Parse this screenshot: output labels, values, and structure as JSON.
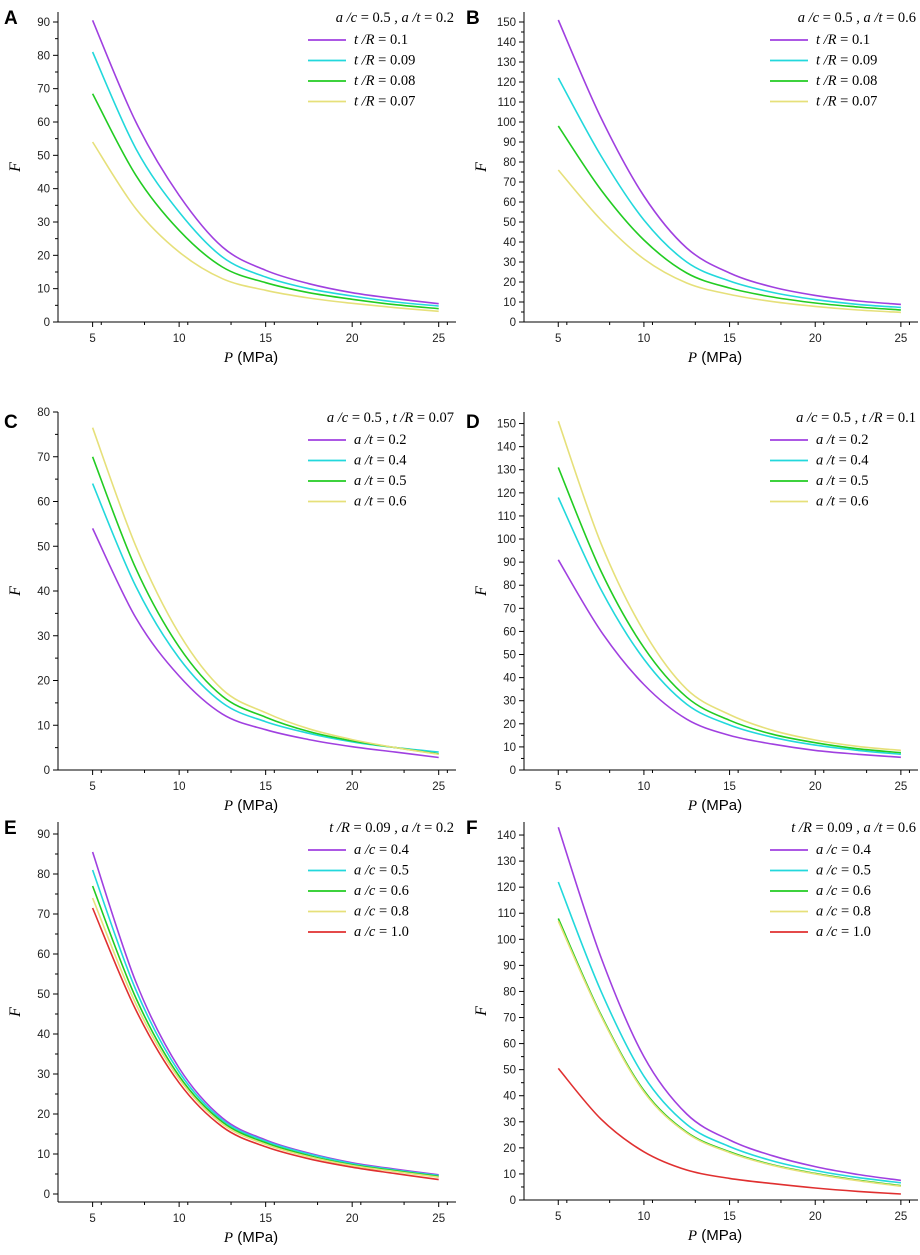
{
  "chart_data": [
    {
      "panel": "A",
      "type": "line",
      "title": "a /c = 0.5 , a /t = 0.2",
      "xlabel": "P (MPa)",
      "ylabel": "F",
      "x": [
        5,
        7.5,
        10,
        12.5,
        15,
        17.5,
        20,
        22.5,
        25
      ],
      "xlim": [
        3,
        26
      ],
      "ylim": [
        0,
        93
      ],
      "xticks": [
        5,
        10,
        15,
        20,
        25
      ],
      "yticks": [
        0,
        10,
        20,
        30,
        40,
        50,
        60,
        70,
        80,
        90
      ],
      "legend_position": "top-right",
      "series": [
        {
          "name": "t /R = 0.1",
          "prefix": "t /R",
          "value": "= 0.1",
          "color": "#a040e0",
          "values": [
            90.5,
            60,
            38,
            22.5,
            15.5,
            11.5,
            8.8,
            7.0,
            5.5
          ]
        },
        {
          "name": "t /R = 0.09",
          "prefix": "t /R",
          "value": "= 0.09",
          "color": "#22d8dc",
          "values": [
            81,
            52,
            33,
            19.5,
            13.5,
            10.0,
            7.8,
            6.0,
            4.8
          ]
        },
        {
          "name": "t /R = 0.08",
          "prefix": "t /R",
          "value": "= 0.08",
          "color": "#22cc22",
          "values": [
            68.5,
            44,
            27.5,
            16.5,
            11.8,
            8.8,
            6.8,
            5.2,
            4.0
          ]
        },
        {
          "name": "t /R = 0.07",
          "prefix": "t /R",
          "value": "= 0.07",
          "color": "#e6e07a",
          "values": [
            54,
            34,
            21,
            13,
            9.5,
            7.2,
            5.6,
            4.3,
            3.2
          ]
        }
      ]
    },
    {
      "panel": "B",
      "type": "line",
      "title": "a /c = 0.5 , a /t = 0.6",
      "xlabel": "P (MPa)",
      "ylabel": "F",
      "x": [
        5,
        7.5,
        10,
        12.5,
        15,
        17.5,
        20,
        22.5,
        25
      ],
      "xlim": [
        3,
        26
      ],
      "ylim": [
        0,
        155
      ],
      "xticks": [
        5,
        10,
        15,
        20,
        25
      ],
      "yticks": [
        0,
        10,
        20,
        30,
        40,
        50,
        60,
        70,
        80,
        90,
        100,
        110,
        120,
        130,
        140,
        150
      ],
      "legend_position": "top-right",
      "series": [
        {
          "name": "t /R = 0.1",
          "prefix": "t /R",
          "value": "= 0.1",
          "color": "#a040e0",
          "values": [
            151,
            102,
            63,
            37,
            24.5,
            17.5,
            13.3,
            10.5,
            8.8
          ]
        },
        {
          "name": "t /R = 0.09",
          "prefix": "t /R",
          "value": "= 0.09",
          "color": "#22d8dc",
          "values": [
            122,
            83,
            51,
            30,
            20.5,
            14.8,
            11.2,
            8.8,
            7.3
          ]
        },
        {
          "name": "t /R = 0.08",
          "prefix": "t /R",
          "value": "= 0.08",
          "color": "#22cc22",
          "values": [
            98,
            66,
            41,
            24.5,
            17,
            12.5,
            9.5,
            7.5,
            6.0
          ]
        },
        {
          "name": "t /R = 0.07",
          "prefix": "t /R",
          "value": "= 0.07",
          "color": "#e6e07a",
          "values": [
            76,
            51,
            31.5,
            19.5,
            13.8,
            10.2,
            7.8,
            6.0,
            4.8
          ]
        }
      ]
    },
    {
      "panel": "C",
      "type": "line",
      "title": "a /c = 0.5 , t /R = 0.07",
      "xlabel": "P (MPa)",
      "ylabel": "F",
      "x": [
        5,
        7.5,
        10,
        12.5,
        15,
        17.5,
        20,
        22.5,
        25
      ],
      "xlim": [
        3,
        26
      ],
      "ylim": [
        0,
        80
      ],
      "xticks": [
        5,
        10,
        15,
        20,
        25
      ],
      "yticks": [
        0,
        10,
        20,
        30,
        40,
        50,
        60,
        70,
        80
      ],
      "legend_position": "top-right",
      "series": [
        {
          "name": "a /t = 0.2",
          "prefix": "a /t",
          "value": "= 0.2",
          "color": "#a040e0",
          "values": [
            54,
            34,
            21,
            12.5,
            9.0,
            6.8,
            5.2,
            4.0,
            2.8
          ]
        },
        {
          "name": "a /t = 0.4",
          "prefix": "a /t",
          "value": "= 0.4",
          "color": "#22d8dc",
          "values": [
            64,
            41,
            25,
            15,
            10.8,
            8.2,
            6.3,
            5.0,
            4.0
          ]
        },
        {
          "name": "a /t = 0.5",
          "prefix": "a /t",
          "value": "= 0.5",
          "color": "#22cc22",
          "values": [
            70,
            45,
            27.5,
            16.5,
            11.8,
            8.6,
            6.5,
            5.0,
            3.6
          ]
        },
        {
          "name": "a /t = 0.6",
          "prefix": "a /t",
          "value": "= 0.6",
          "color": "#e6e07a",
          "values": [
            76.5,
            50,
            30.5,
            18,
            12.8,
            9.2,
            6.8,
            5.0,
            3.5
          ]
        }
      ]
    },
    {
      "panel": "D",
      "type": "line",
      "title": "a /c = 0.5 , t /R = 0.1",
      "xlabel": "P (MPa)",
      "ylabel": "F",
      "x": [
        5,
        7.5,
        10,
        12.5,
        15,
        17.5,
        20,
        22.5,
        25
      ],
      "xlim": [
        3,
        26
      ],
      "ylim": [
        0,
        155
      ],
      "xticks": [
        5,
        10,
        15,
        20,
        25
      ],
      "yticks": [
        0,
        10,
        20,
        30,
        40,
        50,
        60,
        70,
        80,
        90,
        100,
        110,
        120,
        130,
        140,
        150
      ],
      "legend_position": "top-right",
      "series": [
        {
          "name": "a /t = 0.2",
          "prefix": "a /t",
          "value": "= 0.2",
          "color": "#a040e0",
          "values": [
            91,
            60,
            37,
            22,
            15,
            11.2,
            8.5,
            6.8,
            5.5
          ]
        },
        {
          "name": "a /t = 0.4",
          "prefix": "a /t",
          "value": "= 0.4",
          "color": "#22d8dc",
          "values": [
            118,
            78,
            48,
            28.5,
            19.5,
            14.2,
            10.8,
            8.5,
            6.8
          ]
        },
        {
          "name": "a /t = 0.5",
          "prefix": "a /t",
          "value": "= 0.5",
          "color": "#22cc22",
          "values": [
            131,
            86,
            53,
            31.5,
            21.5,
            15.5,
            11.8,
            9.2,
            7.5
          ]
        },
        {
          "name": "a /t = 0.6",
          "prefix": "a /t",
          "value": "= 0.6",
          "color": "#e6e07a",
          "values": [
            151,
            98,
            60,
            35,
            24,
            17.2,
            13.0,
            10.2,
            8.5
          ]
        }
      ]
    },
    {
      "panel": "E",
      "type": "line",
      "title": "t /R = 0.09 , a /t = 0.2",
      "xlabel": "P (MPa)",
      "ylabel": "F",
      "x": [
        5,
        7.5,
        10,
        12.5,
        15,
        17.5,
        20,
        22.5,
        25
      ],
      "xlim": [
        3,
        26
      ],
      "ylim": [
        -2,
        93
      ],
      "xticks": [
        5,
        10,
        15,
        20,
        25
      ],
      "yticks": [
        0,
        10,
        20,
        30,
        40,
        50,
        60,
        70,
        80,
        90
      ],
      "legend_position": "top-right",
      "series": [
        {
          "name": "a /c = 0.4",
          "prefix": "a /c",
          "value": "= 0.4",
          "color": "#a040e0",
          "values": [
            85.5,
            53,
            31.5,
            19,
            13.5,
            10.2,
            7.8,
            6.2,
            4.8
          ]
        },
        {
          "name": "a /c = 0.5",
          "prefix": "a /c",
          "value": "= 0.5",
          "color": "#22d8dc",
          "values": [
            81,
            51,
            30.5,
            18.5,
            13.2,
            10.0,
            7.6,
            6.0,
            4.6
          ]
        },
        {
          "name": "a /c = 0.6",
          "prefix": "a /c",
          "value": "= 0.6",
          "color": "#22cc22",
          "values": [
            77,
            49,
            29.5,
            18,
            12.8,
            9.6,
            7.3,
            5.8,
            4.4
          ]
        },
        {
          "name": "a /c = 0.8",
          "prefix": "a /c",
          "value": "= 0.8",
          "color": "#e6e07a",
          "values": [
            74,
            47.5,
            28.8,
            17.5,
            12.4,
            9.3,
            7.1,
            5.6,
            4.2
          ]
        },
        {
          "name": "a /c = 1.0",
          "prefix": "a /c",
          "value": "= 1.0",
          "color": "#e03030",
          "values": [
            71.5,
            46,
            27.8,
            16.8,
            11.8,
            8.8,
            6.7,
            5.1,
            3.6
          ]
        }
      ]
    },
    {
      "panel": "F",
      "type": "line",
      "title": "t /R = 0.09 , a /t = 0.6",
      "xlabel": "P (MPa)",
      "ylabel": "F",
      "x": [
        5,
        7.5,
        10,
        12.5,
        15,
        17.5,
        20,
        22.5,
        25
      ],
      "xlim": [
        3,
        26
      ],
      "ylim": [
        0,
        145
      ],
      "xticks": [
        5,
        10,
        15,
        20,
        25
      ],
      "yticks": [
        0,
        10,
        20,
        30,
        40,
        50,
        60,
        70,
        80,
        90,
        100,
        110,
        120,
        130,
        140
      ],
      "legend_position": "top-right",
      "series": [
        {
          "name": "a /c = 0.4",
          "prefix": "a /c",
          "value": "= 0.4",
          "color": "#a040e0",
          "values": [
            143,
            93,
            55,
            33,
            23,
            17,
            12.8,
            9.8,
            7.5
          ]
        },
        {
          "name": "a /c = 0.5",
          "prefix": "a /c",
          "value": "= 0.5",
          "color": "#22d8dc",
          "values": [
            122,
            80,
            47.5,
            29,
            20.5,
            15,
            11.3,
            8.6,
            6.6
          ]
        },
        {
          "name": "a /c = 0.6",
          "prefix": "a /c",
          "value": "= 0.6",
          "color": "#22cc22",
          "values": [
            108,
            71,
            42,
            26,
            18.5,
            13.5,
            10.2,
            7.6,
            5.5
          ]
        },
        {
          "name": "a /c = 0.8",
          "prefix": "a /c",
          "value": "= 0.8",
          "color": "#e6e07a",
          "values": [
            107,
            70.5,
            41.5,
            25.7,
            18.2,
            13.3,
            10.0,
            7.4,
            5.3
          ]
        },
        {
          "name": "a /c = 1.0",
          "prefix": "a /c",
          "value": "= 1.0",
          "color": "#e03030",
          "values": [
            50.5,
            31,
            18.5,
            11.5,
            8.3,
            6.3,
            4.6,
            3.3,
            2.3
          ]
        }
      ]
    }
  ]
}
